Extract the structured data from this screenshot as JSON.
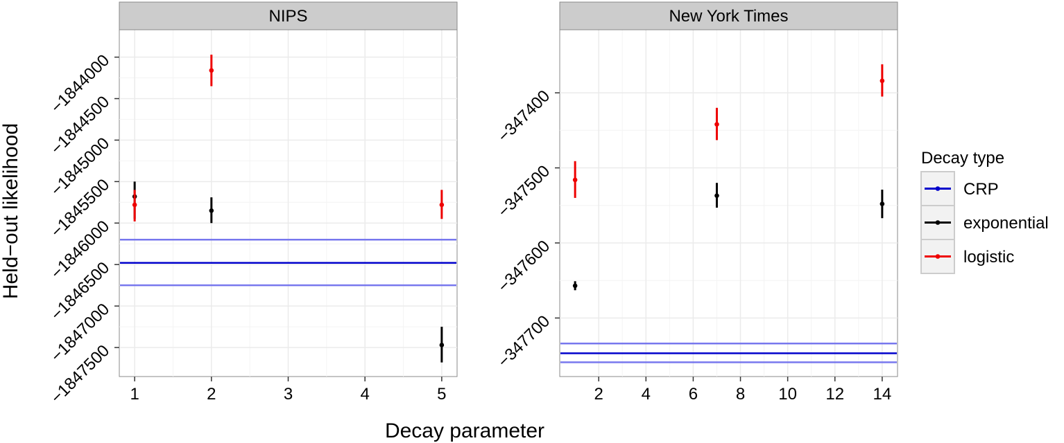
{
  "figure": {
    "ylabel": "Held−out likelihood",
    "xlabel": "Decay parameter"
  },
  "legend": {
    "title": "Decay type",
    "entries": [
      {
        "label": "CRP",
        "color": "#0000cc"
      },
      {
        "label": "exponential",
        "color": "#000000"
      },
      {
        "label": "logistic",
        "color": "#ee0000"
      }
    ]
  },
  "colors": {
    "CRP": "#0000cc",
    "CRP_band": "#7777ee",
    "exponential": "#000000",
    "logistic": "#ee0000",
    "strip": "#cccccc",
    "grid": "#ebebeb",
    "panel_border": "#888888"
  },
  "chart_data": [
    {
      "type": "scatter",
      "title": "NIPS",
      "xlim": [
        0.8,
        5.2
      ],
      "ylim": [
        -1847850,
        -1843670
      ],
      "xticks": [
        1,
        2,
        3,
        4,
        5
      ],
      "xtick_labels": [
        "1",
        "2",
        "3",
        "4",
        "5"
      ],
      "yticks": [
        -1847500,
        -1847000,
        -1846500,
        -1846000,
        -1845500,
        -1845000,
        -1844500,
        -1844000
      ],
      "ytick_labels": [
        "−1847500",
        "−1847000",
        "−1846500",
        "−1846000",
        "−1845500",
        "−1845000",
        "−1844500",
        "−1844000"
      ],
      "crp": {
        "mean": -1846480,
        "lower": -1846750,
        "upper": -1846200
      },
      "series": [
        {
          "name": "exponential",
          "points": [
            {
              "x": 1,
              "y": -1845680,
              "lower": -1845950,
              "upper": -1845500
            },
            {
              "x": 2,
              "y": -1845850,
              "lower": -1846000,
              "upper": -1845690
            },
            {
              "x": 5,
              "y": -1847470,
              "lower": -1847680,
              "upper": -1847250
            }
          ]
        },
        {
          "name": "logistic",
          "points": [
            {
              "x": 1,
              "y": -1845780,
              "lower": -1845980,
              "upper": -1845600
            },
            {
              "x": 2,
              "y": -1844160,
              "lower": -1844350,
              "upper": -1843970
            },
            {
              "x": 5,
              "y": -1845780,
              "lower": -1845950,
              "upper": -1845600
            }
          ]
        }
      ]
    },
    {
      "type": "scatter",
      "title": "New York Times",
      "xlim": [
        0.35,
        14.65
      ],
      "ylim": [
        -347778,
        -347316
      ],
      "xticks": [
        2,
        4,
        6,
        8,
        10,
        12,
        14
      ],
      "xtick_labels": [
        "2",
        "4",
        "6",
        "8",
        "10",
        "12",
        "14"
      ],
      "yticks": [
        -347700,
        -347600,
        -347500,
        -347400
      ],
      "ytick_labels": [
        "−347700",
        "−347600",
        "−347500",
        "−347400"
      ],
      "crp": {
        "mean": -347747,
        "lower": -347759,
        "upper": -347734
      },
      "series": [
        {
          "name": "exponential",
          "points": [
            {
              "x": 1,
              "y": -347657,
              "lower": -347663,
              "upper": -347651
            },
            {
              "x": 7,
              "y": -347537,
              "lower": -347553,
              "upper": -347520
            },
            {
              "x": 14,
              "y": -347548,
              "lower": -347567,
              "upper": -347529
            }
          ]
        },
        {
          "name": "logistic",
          "points": [
            {
              "x": 1,
              "y": -347516,
              "lower": -347540,
              "upper": -347491
            },
            {
              "x": 7,
              "y": -347442,
              "lower": -347463,
              "upper": -347420
            },
            {
              "x": 14,
              "y": -347384,
              "lower": -347405,
              "upper": -347362
            }
          ]
        }
      ]
    }
  ]
}
